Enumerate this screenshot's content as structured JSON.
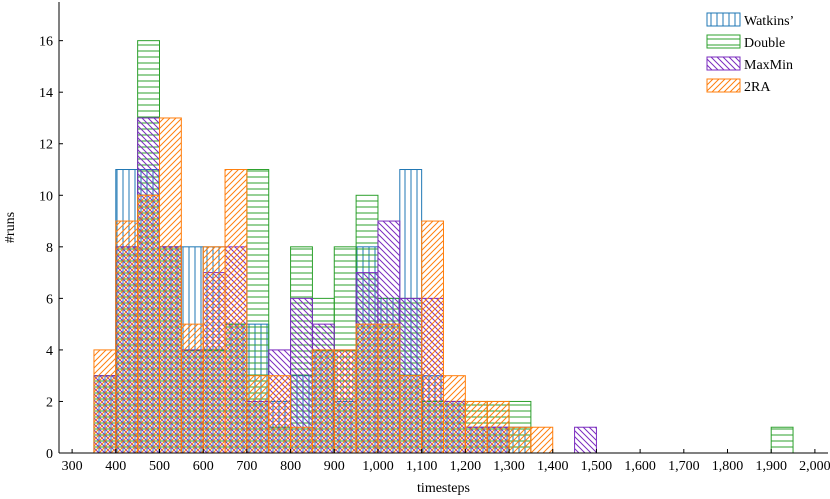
{
  "chart_data": {
    "type": "bar",
    "xlabel": "timesteps",
    "ylabel": "#runs",
    "xlim": [
      270,
      2030
    ],
    "ylim": [
      0,
      17.5
    ],
    "bin_width": 50,
    "x_ticks": [
      300,
      400,
      500,
      600,
      700,
      800,
      900,
      1000,
      1100,
      1200,
      1300,
      1400,
      1500,
      1600,
      1700,
      1800,
      1900,
      2000
    ],
    "x_tick_labels": [
      "300",
      "400",
      "500",
      "600",
      "700",
      "800",
      "900",
      "1,000",
      "1,100",
      "1,200",
      "1,300",
      "1,400",
      "1,500",
      "1,600",
      "1,700",
      "1,800",
      "1,900",
      "2,000"
    ],
    "y_ticks": [
      0,
      2,
      4,
      6,
      8,
      10,
      12,
      14,
      16
    ],
    "y_tick_labels": [
      "0",
      "2",
      "4",
      "6",
      "8",
      "10",
      "12",
      "14",
      "16"
    ],
    "grid": false,
    "legend_position": "top-right",
    "series": [
      {
        "name": "Watkins’",
        "color": "#1f77b4",
        "pattern": "vertical-lines",
        "bins": [
          [
            350,
            3
          ],
          [
            400,
            11
          ],
          [
            450,
            11
          ],
          [
            500,
            8
          ],
          [
            550,
            8
          ],
          [
            600,
            8
          ],
          [
            650,
            5
          ],
          [
            700,
            5
          ],
          [
            750,
            2
          ],
          [
            800,
            3
          ],
          [
            850,
            4
          ],
          [
            900,
            2
          ],
          [
            950,
            8
          ],
          [
            1000,
            6
          ],
          [
            1050,
            11
          ],
          [
            1100,
            3
          ],
          [
            1150,
            2
          ],
          [
            1200,
            1
          ],
          [
            1250,
            1
          ],
          [
            1300,
            1
          ]
        ]
      },
      {
        "name": "Double",
        "color": "#2ca02c",
        "pattern": "horizontal-lines",
        "bins": [
          [
            350,
            3
          ],
          [
            400,
            8
          ],
          [
            450,
            16
          ],
          [
            500,
            8
          ],
          [
            550,
            4
          ],
          [
            600,
            4
          ],
          [
            650,
            5
          ],
          [
            700,
            11
          ],
          [
            750,
            1
          ],
          [
            800,
            8
          ],
          [
            850,
            6
          ],
          [
            900,
            8
          ],
          [
            950,
            10
          ],
          [
            1000,
            6
          ],
          [
            1050,
            6
          ],
          [
            1100,
            2
          ],
          [
            1150,
            2
          ],
          [
            1200,
            2
          ],
          [
            1250,
            2
          ],
          [
            1300,
            2
          ],
          [
            1900,
            1
          ]
        ]
      },
      {
        "name": "MaxMin",
        "color": "#7b2cbf",
        "pattern": "north-west-lines",
        "bins": [
          [
            350,
            3
          ],
          [
            400,
            8
          ],
          [
            450,
            13
          ],
          [
            500,
            8
          ],
          [
            550,
            4
          ],
          [
            600,
            7
          ],
          [
            650,
            8
          ],
          [
            700,
            2
          ],
          [
            750,
            4
          ],
          [
            800,
            6
          ],
          [
            850,
            5
          ],
          [
            900,
            4
          ],
          [
            950,
            7
          ],
          [
            1000,
            9
          ],
          [
            1050,
            6
          ],
          [
            1100,
            6
          ],
          [
            1150,
            2
          ],
          [
            1200,
            1
          ],
          [
            1250,
            1
          ],
          [
            1450,
            1
          ]
        ]
      },
      {
        "name": "2RA",
        "color": "#ff7f0e",
        "pattern": "north-east-lines",
        "bins": [
          [
            350,
            4
          ],
          [
            400,
            9
          ],
          [
            450,
            10
          ],
          [
            500,
            13
          ],
          [
            550,
            5
          ],
          [
            600,
            8
          ],
          [
            650,
            11
          ],
          [
            700,
            3
          ],
          [
            750,
            3
          ],
          [
            800,
            1
          ],
          [
            850,
            4
          ],
          [
            900,
            4
          ],
          [
            950,
            5
          ],
          [
            1000,
            5
          ],
          [
            1050,
            3
          ],
          [
            1100,
            9
          ],
          [
            1150,
            3
          ],
          [
            1200,
            2
          ],
          [
            1250,
            2
          ],
          [
            1300,
            1
          ],
          [
            1350,
            1
          ]
        ]
      }
    ]
  }
}
